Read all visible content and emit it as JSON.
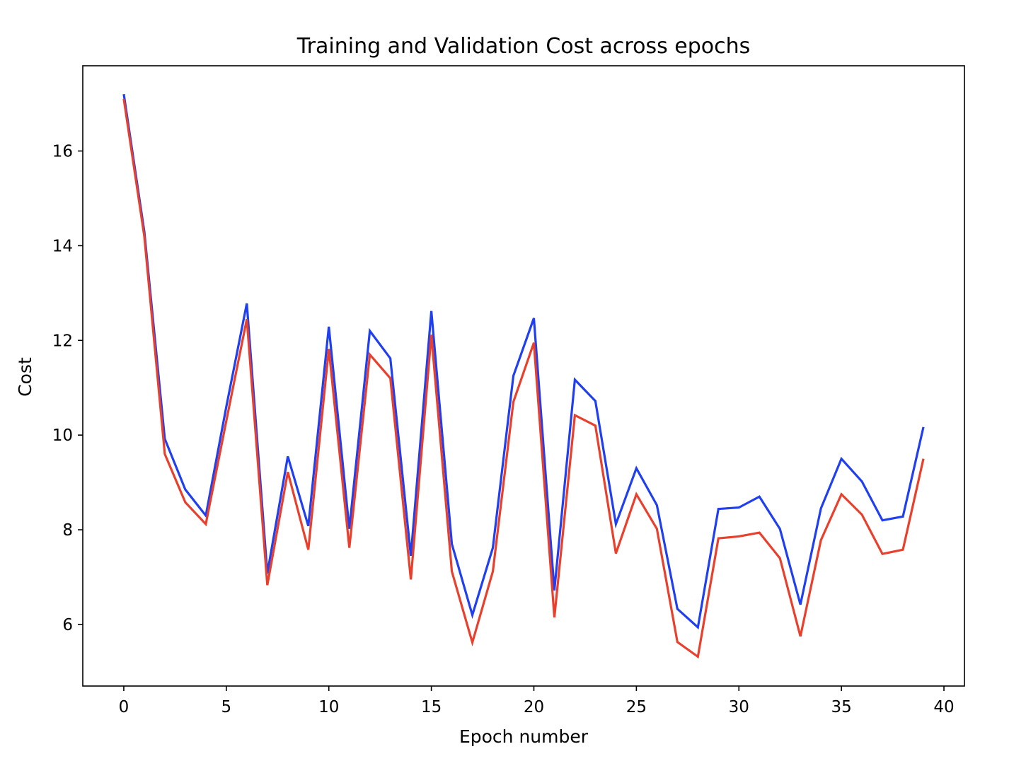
{
  "chart_data": {
    "type": "line",
    "title": "Training and Validation Cost across epochs",
    "xlabel": "Epoch number",
    "ylabel": "Cost",
    "xlim": [
      -2,
      41
    ],
    "ylim": [
      4.7,
      17.8
    ],
    "xticks": [
      0,
      5,
      10,
      15,
      20,
      25,
      30,
      35,
      40
    ],
    "yticks": [
      6,
      8,
      10,
      12,
      14,
      16
    ],
    "grid": false,
    "x": [
      0,
      1,
      2,
      3,
      4,
      5,
      6,
      7,
      8,
      9,
      10,
      11,
      12,
      13,
      14,
      15,
      16,
      17,
      18,
      19,
      20,
      21,
      22,
      23,
      24,
      25,
      26,
      27,
      28,
      29,
      30,
      31,
      32,
      33,
      34,
      35,
      36,
      37,
      38,
      39
    ],
    "series": [
      {
        "color": "#1f3ff0",
        "values": [
          17.2,
          14.3,
          9.92,
          8.85,
          8.3,
          10.6,
          12.78,
          7.08,
          9.55,
          8.08,
          12.29,
          8.02,
          12.2,
          11.62,
          7.45,
          12.62,
          7.7,
          6.2,
          7.62,
          11.25,
          12.47,
          6.72,
          11.17,
          10.72,
          8.12,
          9.3,
          8.52,
          6.33,
          5.94,
          8.44,
          8.47,
          8.7,
          8.02,
          6.42,
          8.45,
          9.5,
          9.02,
          8.2,
          8.28,
          10.17
        ]
      },
      {
        "color": "#e8402c",
        "values": [
          17.1,
          14.2,
          9.6,
          8.58,
          8.12,
          10.3,
          12.45,
          6.83,
          9.22,
          7.58,
          11.82,
          7.62,
          11.7,
          11.2,
          6.95,
          12.12,
          7.12,
          5.62,
          7.12,
          10.7,
          11.95,
          6.15,
          10.42,
          10.2,
          7.5,
          8.75,
          8.02,
          5.63,
          5.32,
          7.82,
          7.86,
          7.94,
          7.4,
          5.75,
          7.78,
          8.75,
          8.32,
          7.49,
          7.58,
          9.5
        ]
      }
    ]
  }
}
